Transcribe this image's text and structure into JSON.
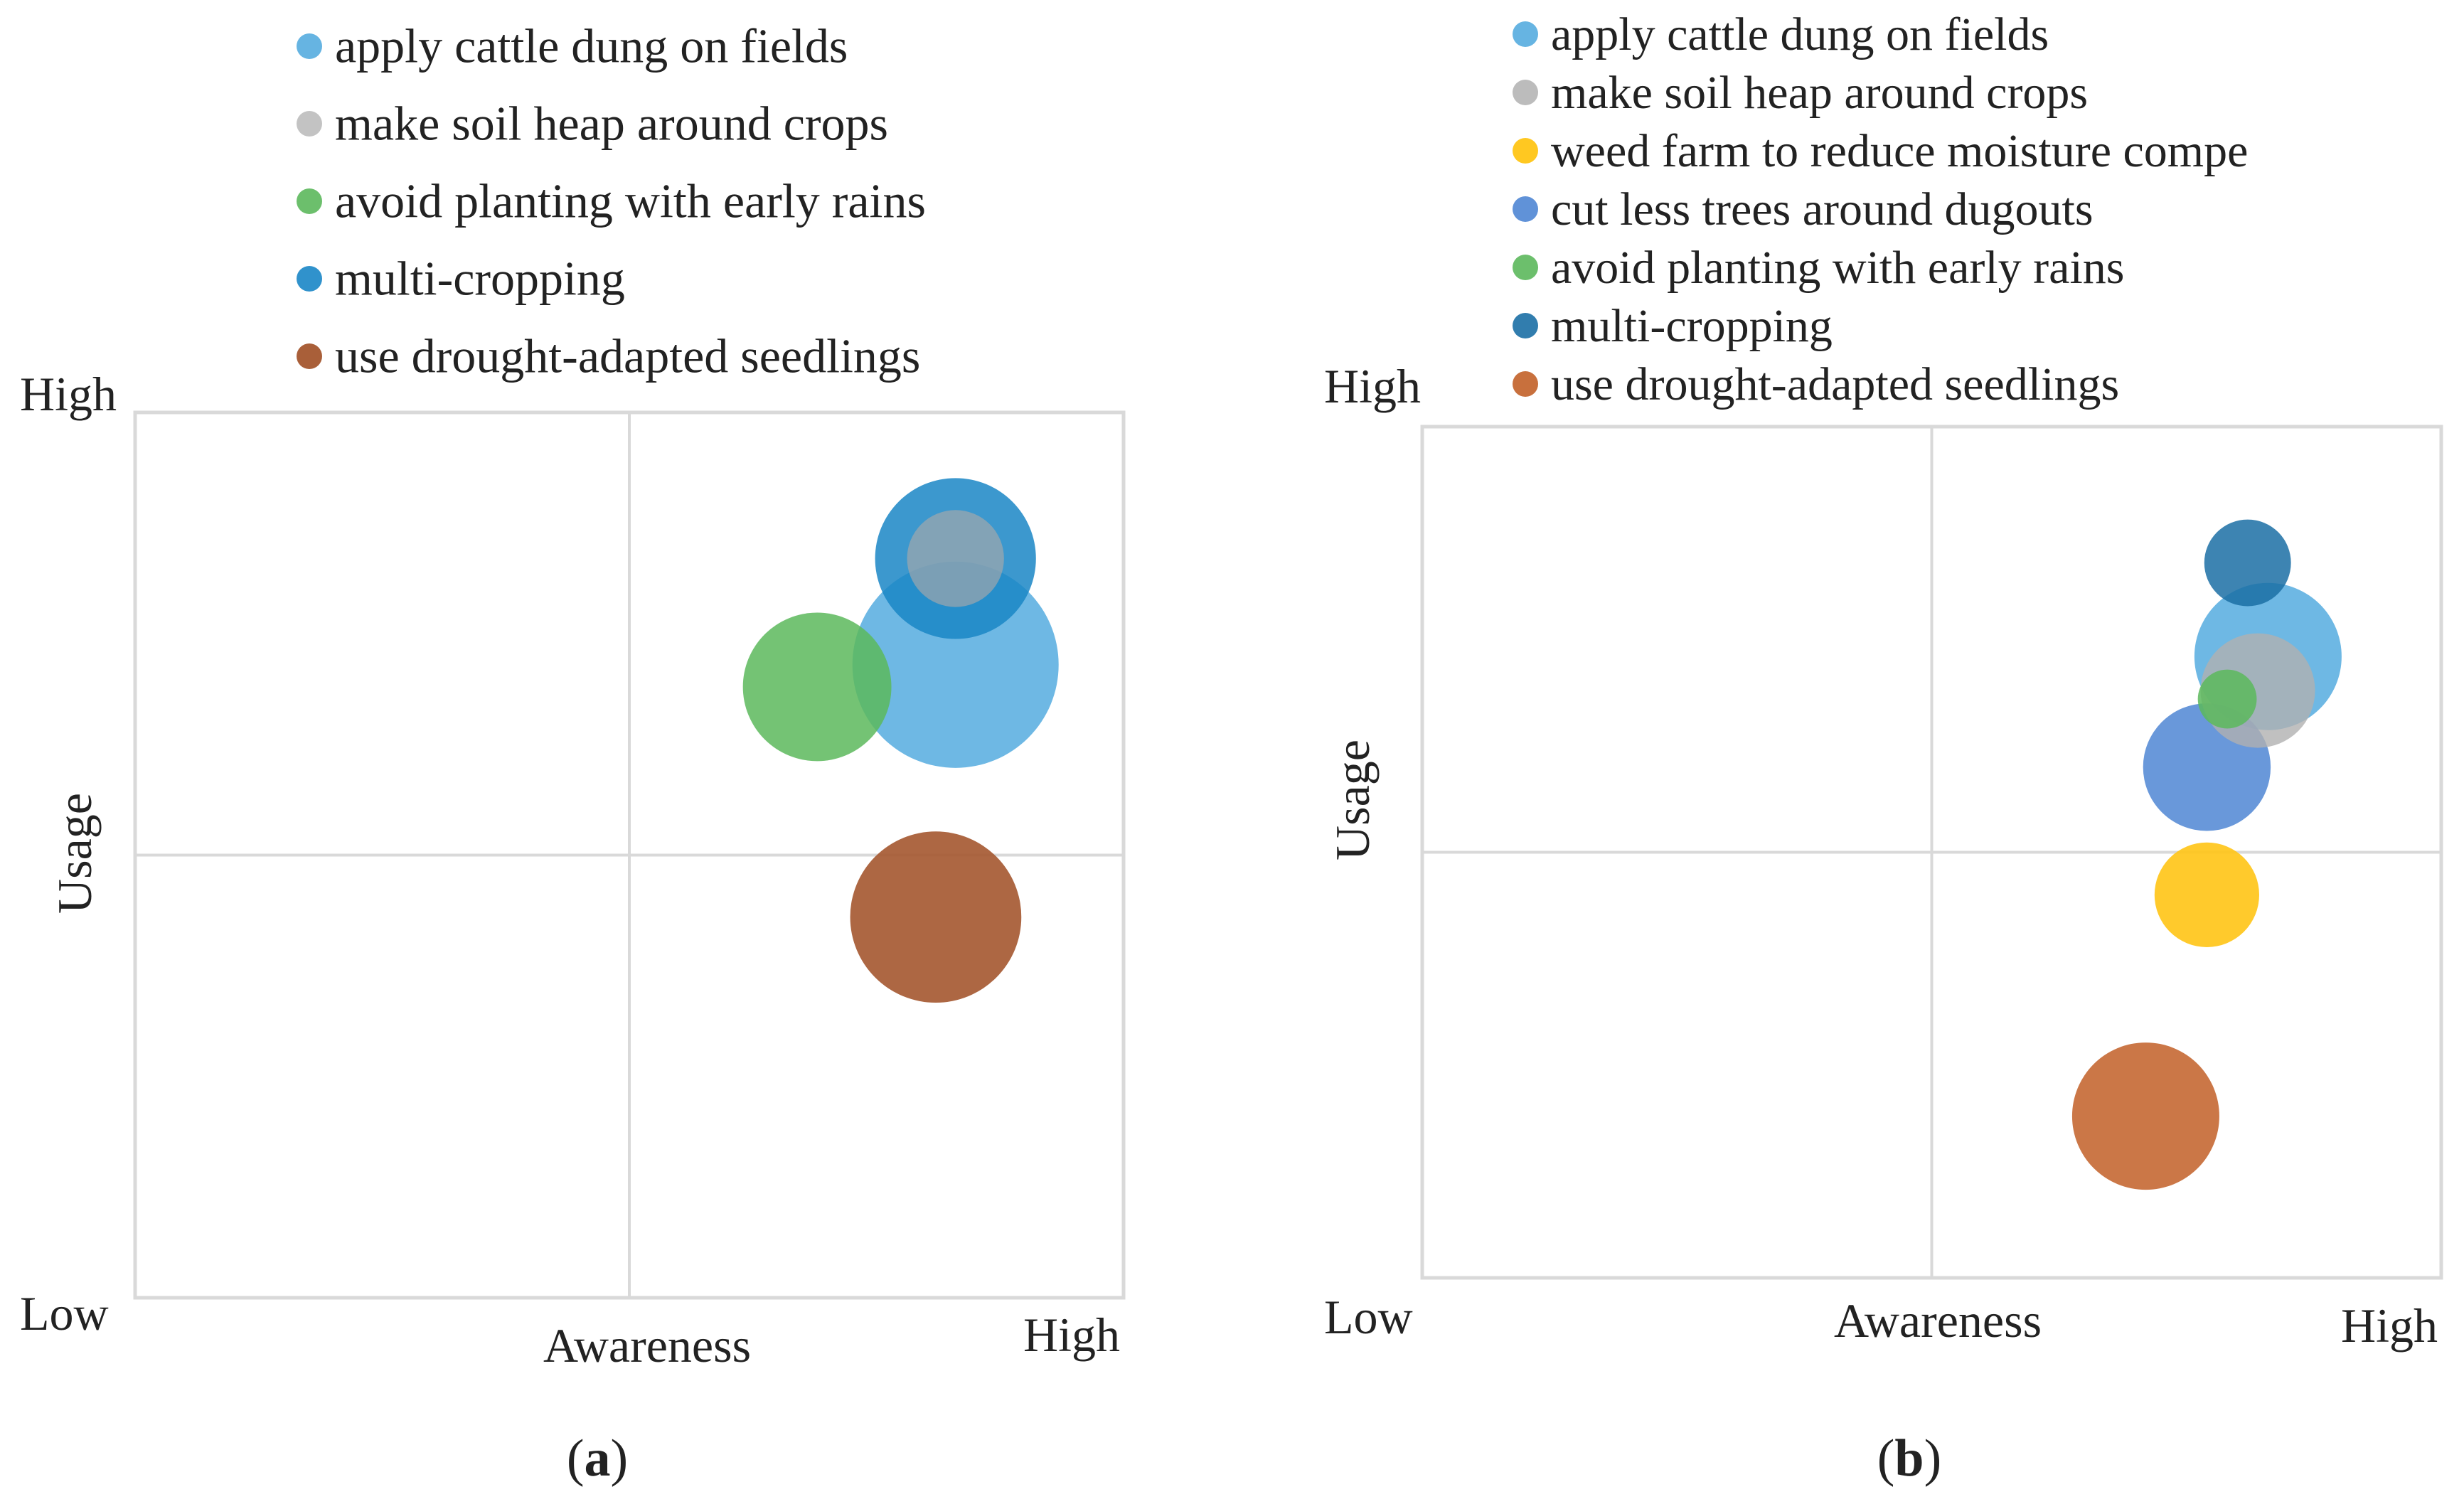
{
  "colors": {
    "frame": "#d9d9d9",
    "text": "#222222"
  },
  "chart_data": [
    {
      "type": "bubble",
      "panel_label": "(a)",
      "panel_letter": "a",
      "x_axis": {
        "label": "Awareness",
        "low": "Low",
        "high": "High",
        "range": [
          0,
          1
        ]
      },
      "y_axis": {
        "label": "Usage",
        "high": "High",
        "range": [
          0,
          1
        ]
      },
      "quadrant_dividers": {
        "x": 0.5,
        "y": 0.5
      },
      "legend_position": "top",
      "series": [
        {
          "name": "apply cattle dung on fields",
          "x": 0.83,
          "y": 0.715,
          "size": 1.0,
          "color": "#5aaee0",
          "opacity": 0.88
        },
        {
          "name": "make soil heap around crops",
          "x": 0.83,
          "y": 0.835,
          "size": 0.47,
          "color": "#a9a9a9",
          "opacity": 0.65
        },
        {
          "name": "avoid planting with early rains",
          "x": 0.69,
          "y": 0.69,
          "size": 0.72,
          "color": "#5cb85c",
          "opacity": 0.85
        },
        {
          "name": "multi-cropping",
          "x": 0.83,
          "y": 0.835,
          "size": 0.78,
          "color": "#1a86c6",
          "opacity": 0.85
        },
        {
          "name": "use drought-adapted seedlings",
          "x": 0.81,
          "y": 0.43,
          "size": 0.83,
          "color": "#a65a33",
          "opacity": 0.92
        }
      ]
    },
    {
      "type": "bubble",
      "panel_label": "(b)",
      "panel_letter": "b",
      "x_axis": {
        "label": "Awareness",
        "low": "Low",
        "high": "High",
        "range": [
          0,
          1
        ]
      },
      "y_axis": {
        "label": "Usage",
        "high": "High",
        "range": [
          0,
          1
        ]
      },
      "quadrant_dividers": {
        "x": 0.5,
        "y": 0.5
      },
      "legend_position": "top",
      "series": [
        {
          "name": "apply cattle dung on fields",
          "x": 0.83,
          "y": 0.73,
          "size": 0.9,
          "color": "#5aaee0",
          "opacity": 0.88
        },
        {
          "name": "make soil heap around crops",
          "x": 0.82,
          "y": 0.69,
          "size": 0.7,
          "color": "#b0b0b0",
          "opacity": 0.8
        },
        {
          "name": "weed farm to reduce moisture compe",
          "x": 0.77,
          "y": 0.45,
          "size": 0.64,
          "color": "#ffc61a",
          "opacity": 0.92
        },
        {
          "name": "cut less trees around dugouts",
          "x": 0.77,
          "y": 0.6,
          "size": 0.78,
          "color": "#4f86d4",
          "opacity": 0.85
        },
        {
          "name": "avoid planting with early rains",
          "x": 0.79,
          "y": 0.68,
          "size": 0.36,
          "color": "#5cb85c",
          "opacity": 0.85
        },
        {
          "name": "multi-cropping",
          "x": 0.81,
          "y": 0.84,
          "size": 0.53,
          "color": "#1b6fa5",
          "opacity": 0.85
        },
        {
          "name": "use drought-adapted seedlings",
          "x": 0.71,
          "y": 0.19,
          "size": 0.9,
          "color": "#c8703d",
          "opacity": 0.95
        }
      ]
    }
  ]
}
